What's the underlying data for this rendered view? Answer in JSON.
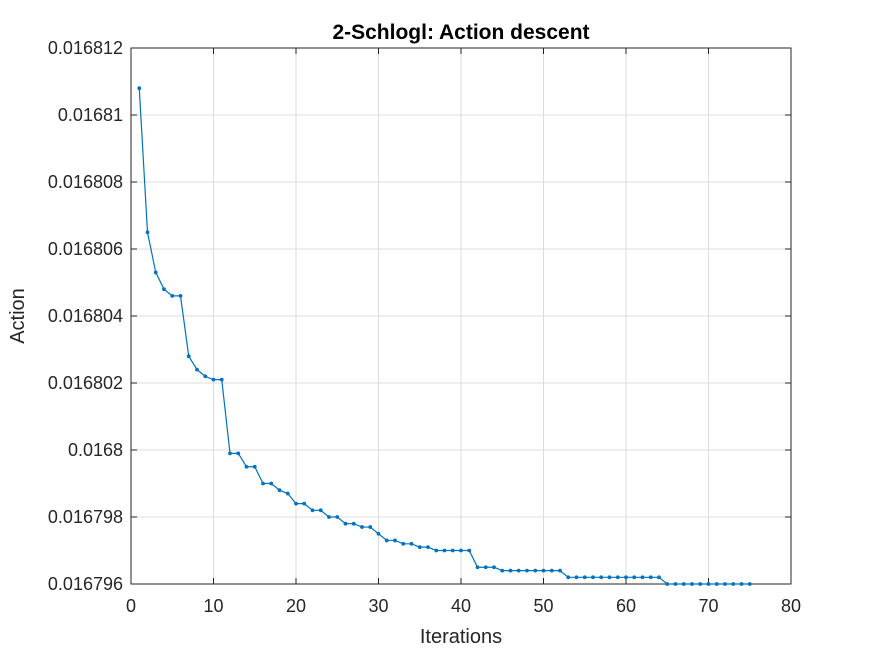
{
  "chart_data": {
    "type": "line",
    "title": "2-Schlogl: Action descent",
    "xlabel": "Iterations",
    "ylabel": "Action",
    "xlim": [
      0,
      80
    ],
    "ylim": [
      0.016796,
      0.016812
    ],
    "xticks": [
      0,
      10,
      20,
      30,
      40,
      50,
      60,
      70,
      80
    ],
    "xtick_labels": [
      "0",
      "10",
      "20",
      "30",
      "40",
      "50",
      "60",
      "70",
      "80"
    ],
    "yticks": [
      0.016796,
      0.016798,
      0.0168,
      0.016802,
      0.016804,
      0.016806,
      0.016808,
      0.01681,
      0.016812
    ],
    "ytick_labels": [
      "0.016796",
      "0.016798",
      "0.0168",
      "0.016802",
      "0.016804",
      "0.016806",
      "0.016808",
      "0.01681",
      "0.016812"
    ],
    "grid": true,
    "line_color": "#0072BD",
    "marker": "dot",
    "x": [
      1,
      2,
      3,
      4,
      5,
      6,
      7,
      8,
      9,
      10,
      11,
      12,
      13,
      14,
      15,
      16,
      17,
      18,
      19,
      20,
      21,
      22,
      23,
      24,
      25,
      26,
      27,
      28,
      29,
      30,
      31,
      32,
      33,
      34,
      35,
      36,
      37,
      38,
      39,
      40,
      41,
      42,
      43,
      44,
      45,
      46,
      47,
      48,
      49,
      50,
      51,
      52,
      53,
      54,
      55,
      56,
      57,
      58,
      59,
      60,
      61,
      62,
      63,
      64,
      65,
      66,
      67,
      68,
      69,
      70,
      71,
      72,
      73,
      74,
      75
    ],
    "y": [
      0.0168108,
      0.0168065,
      0.0168053,
      0.0168048,
      0.0168046,
      0.0168046,
      0.0168028,
      0.0168024,
      0.0168022,
      0.0168021,
      0.0168021,
      0.0167999,
      0.0167999,
      0.0167995,
      0.0167995,
      0.016799,
      0.016799,
      0.0167988,
      0.0167987,
      0.0167984,
      0.0167984,
      0.0167982,
      0.0167982,
      0.016798,
      0.016798,
      0.0167978,
      0.0167978,
      0.0167977,
      0.0167977,
      0.0167975,
      0.0167973,
      0.0167973,
      0.0167972,
      0.0167972,
      0.0167971,
      0.0167971,
      0.016797,
      0.016797,
      0.016797,
      0.016797,
      0.016797,
      0.0167965,
      0.0167965,
      0.0167965,
      0.0167964,
      0.0167964,
      0.0167964,
      0.0167964,
      0.0167964,
      0.0167964,
      0.0167964,
      0.0167964,
      0.0167962,
      0.0167962,
      0.0167962,
      0.0167962,
      0.0167962,
      0.0167962,
      0.0167962,
      0.0167962,
      0.0167962,
      0.0167962,
      0.0167962,
      0.0167962,
      0.016796,
      0.016796,
      0.016796,
      0.016796,
      0.016796,
      0.016796,
      0.016796,
      0.016796,
      0.016796,
      0.016796,
      0.016796
    ]
  }
}
